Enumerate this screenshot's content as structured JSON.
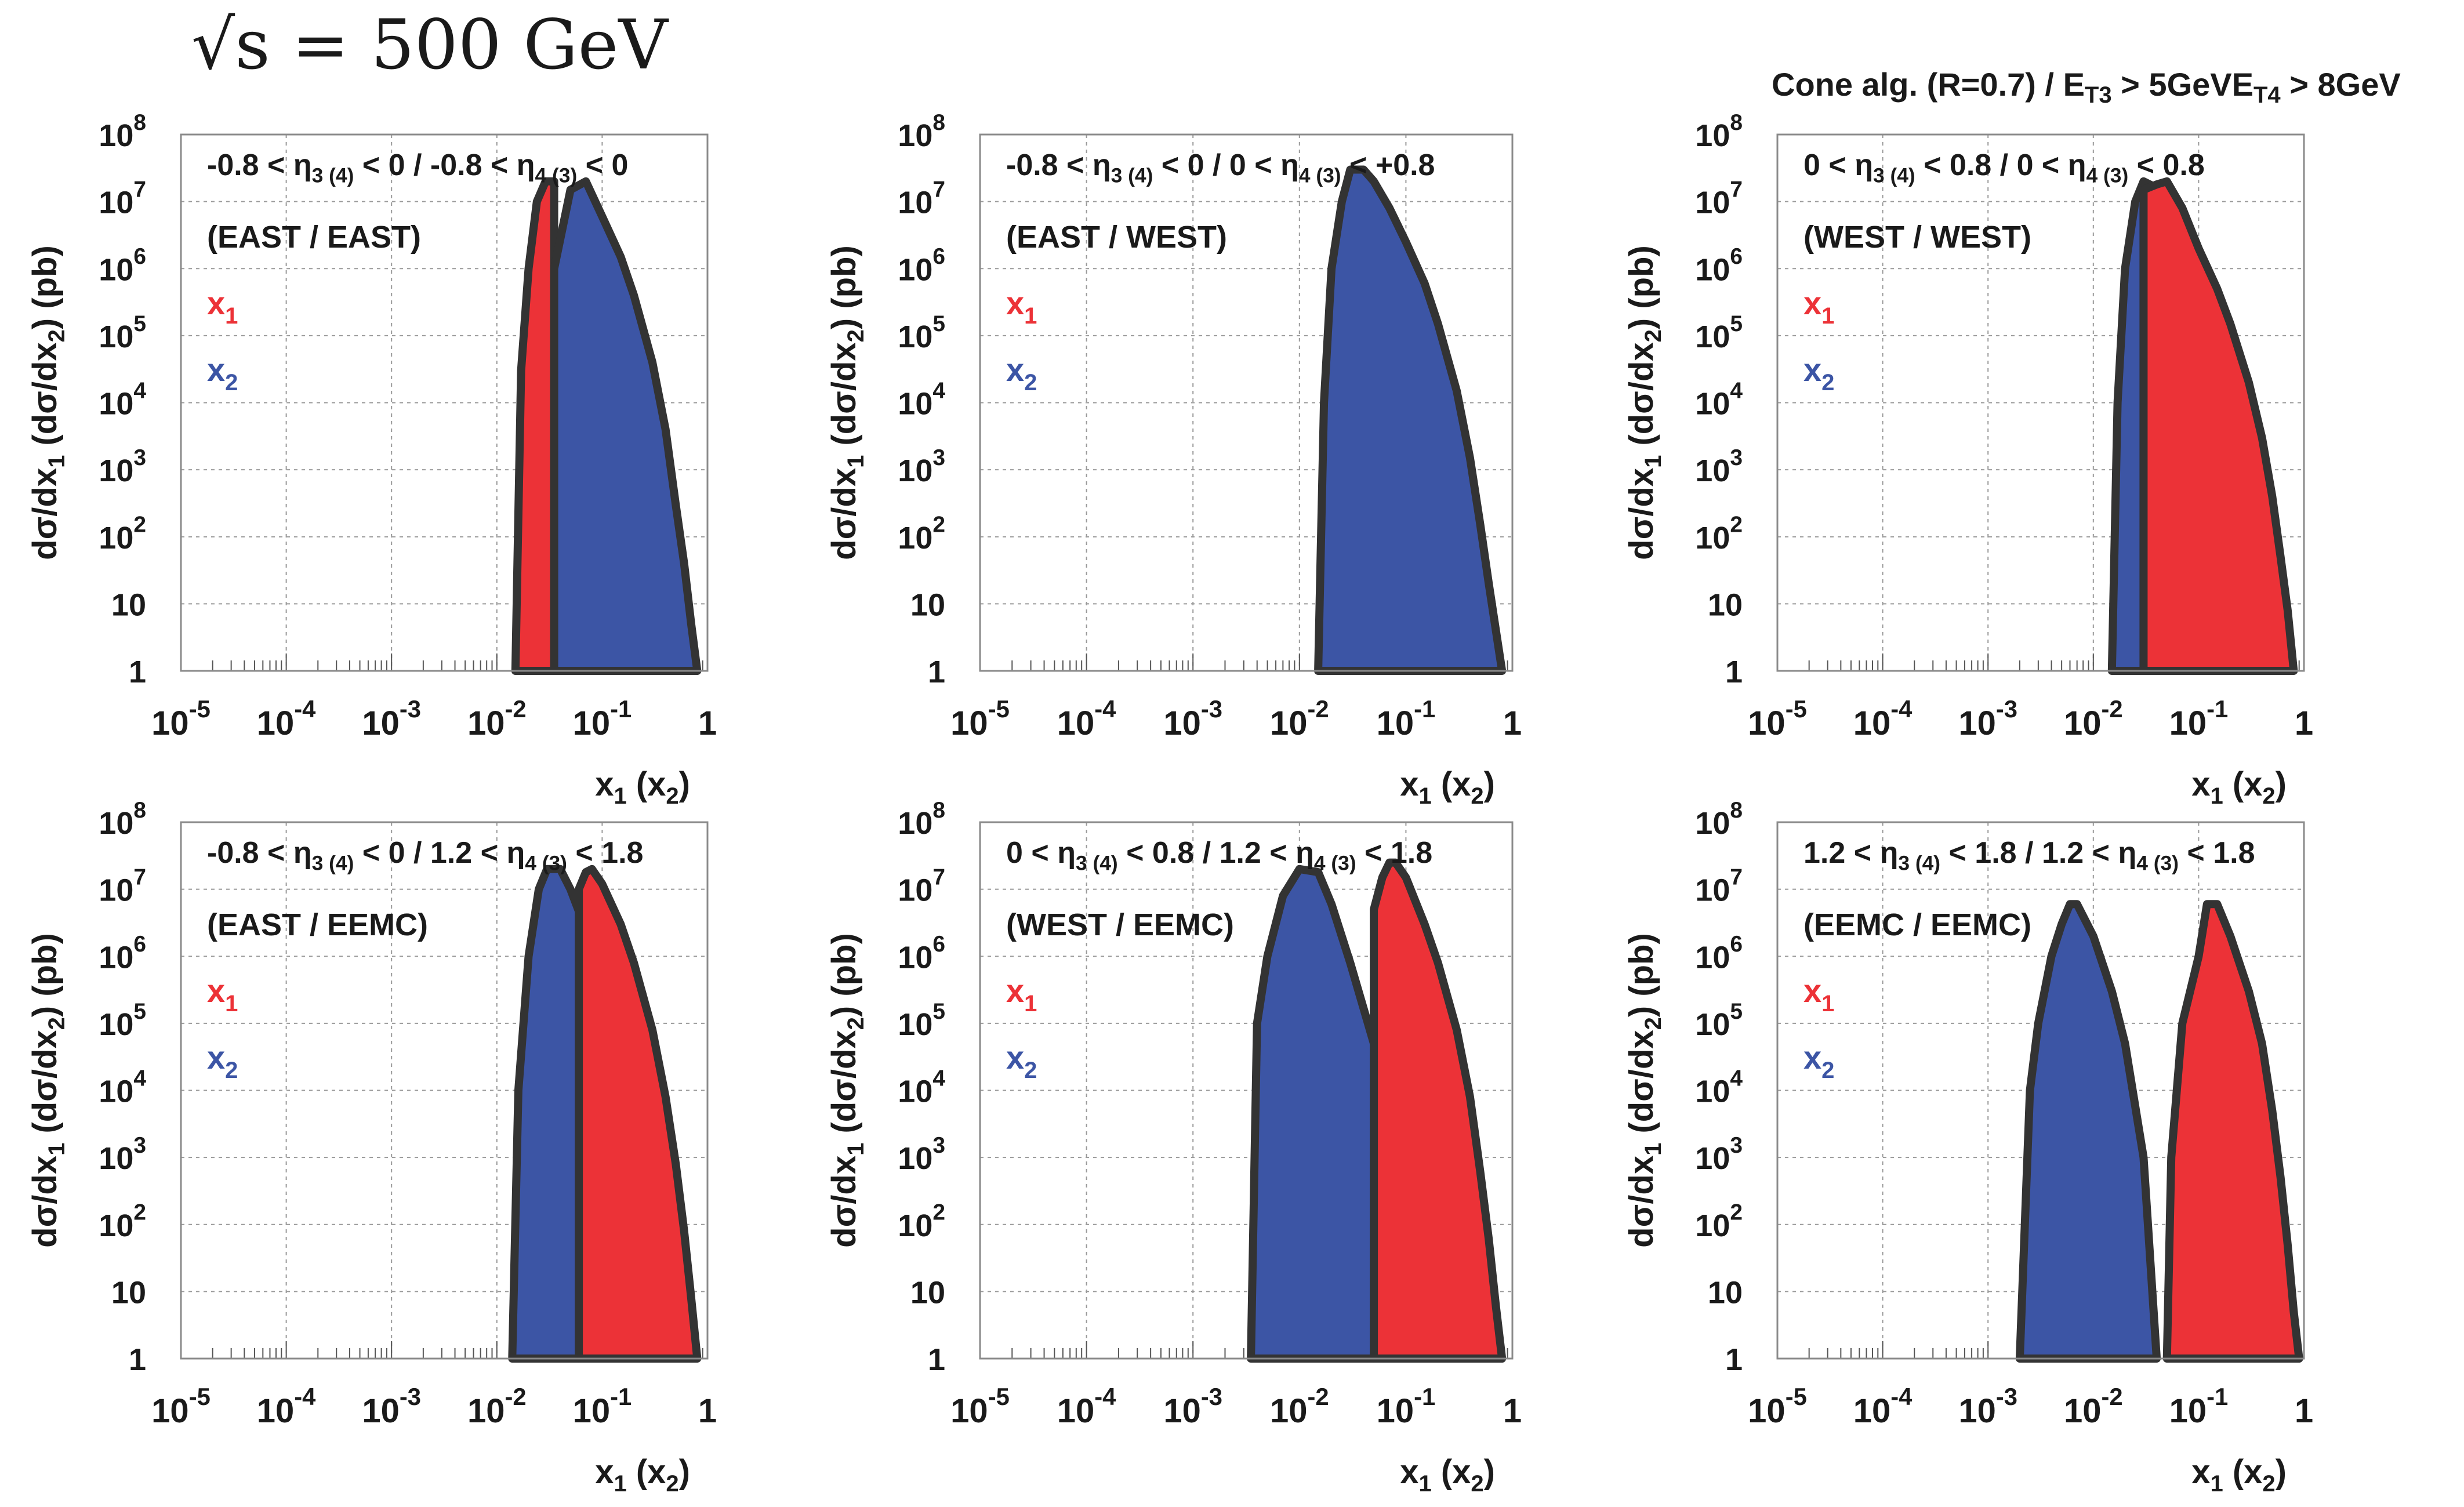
{
  "figure_title": "√s = 500 GeV",
  "header_note": {
    "prefix": "Cone alg. (R=0.7) / ",
    "et3_base": "E",
    "et3_sub": "T3",
    "et3_cut": " > 5GeV",
    "et4_base": "E",
    "et4_sub": "T4",
    "et4_cut": " > 8GeV"
  },
  "colors": {
    "x1": "#ec3237",
    "x2": "#3c55a5",
    "outline": "#333333",
    "grid": "#9a9a9a"
  },
  "chart_data": [
    {
      "type": "area",
      "region_label": "-0.8 < η3 (4) < 0 / -0.8 < η4 (3) < 0",
      "detector_label": "(EAST / EAST)",
      "legend": [
        "x1",
        "x2"
      ],
      "xlabel": "x1 (x2)",
      "ylabel": "dσ/dx1 (dσ/dx2) (pb)",
      "xscale": "log",
      "yscale": "log",
      "xlim": [
        1e-05,
        1
      ],
      "ylim": [
        1,
        100000000.0
      ],
      "grid": true,
      "x_ticks": [
        "10^-5",
        "10^-4",
        "10^-3",
        "10^-2",
        "10^-1",
        "1"
      ],
      "y_ticks": [
        "1",
        "10",
        "10^2",
        "10^3",
        "10^4",
        "10^5",
        "10^6",
        "10^7",
        "10^8"
      ],
      "series": [
        {
          "name": "x1",
          "x": [
            0.015,
            0.017,
            0.02,
            0.024,
            0.029,
            0.035
          ],
          "y": [
            1,
            30000.0,
            1000000.0,
            10000000.0,
            20000000.0,
            20000000.0
          ]
        },
        {
          "name": "x2",
          "x": [
            0.035,
            0.05,
            0.07,
            0.1,
            0.15,
            0.2,
            0.3,
            0.4,
            0.5,
            0.6,
            0.7,
            0.8
          ],
          "y": [
            1000000.0,
            15000000.0,
            20000000.0,
            6000000.0,
            1500000.0,
            400000.0,
            40000.0,
            4000.0,
            300.0,
            40,
            5,
            1
          ]
        }
      ]
    },
    {
      "type": "area",
      "region_label": "-0.8 < η3 (4) < 0 / 0 < η4 (3) < +0.8",
      "detector_label": "(EAST / WEST)",
      "legend": [
        "x1",
        "x2"
      ],
      "xlabel": "x1 (x2)",
      "ylabel": "dσ/dx1 (dσ/dx2) (pb)",
      "xscale": "log",
      "yscale": "log",
      "xlim": [
        1e-05,
        1
      ],
      "ylim": [
        1,
        100000000.0
      ],
      "grid": true,
      "x_ticks": [
        "10^-5",
        "10^-4",
        "10^-3",
        "10^-2",
        "10^-1",
        "1"
      ],
      "y_ticks": [
        "1",
        "10",
        "10^2",
        "10^3",
        "10^4",
        "10^5",
        "10^6",
        "10^7",
        "10^8"
      ],
      "series": [
        {
          "name": "x2",
          "x": [
            0.015,
            0.017,
            0.02,
            0.025,
            0.03,
            0.04,
            0.05,
            0.07,
            0.1,
            0.15,
            0.2,
            0.3,
            0.4,
            0.5,
            0.6,
            0.7,
            0.8
          ],
          "y": [
            1,
            10000.0,
            1000000.0,
            10000000.0,
            30000000.0,
            30000000.0,
            20000000.0,
            8000000.0,
            2500000.0,
            600000.0,
            150000.0,
            15000.0,
            1500.0,
            150.0,
            20,
            4,
            1
          ]
        }
      ]
    },
    {
      "type": "area",
      "region_label": "0 < η3 (4) < 0.8 / 0 < η4 (3) < 0.8",
      "detector_label": "(WEST / WEST)",
      "legend": [
        "x1",
        "x2"
      ],
      "xlabel": "x1 (x2)",
      "ylabel": "dσ/dx1 (dσ/dx2) (pb)",
      "xscale": "log",
      "yscale": "log",
      "xlim": [
        1e-05,
        1
      ],
      "ylim": [
        1,
        100000000.0
      ],
      "grid": true,
      "x_ticks": [
        "10^-5",
        "10^-4",
        "10^-3",
        "10^-2",
        "10^-1",
        "1"
      ],
      "y_ticks": [
        "1",
        "10",
        "10^2",
        "10^3",
        "10^4",
        "10^5",
        "10^6",
        "10^7",
        "10^8"
      ],
      "series": [
        {
          "name": "x2",
          "x": [
            0.015,
            0.017,
            0.02,
            0.025,
            0.03,
            0.04,
            0.05,
            0.07,
            0.1,
            0.15,
            0.2,
            0.3,
            0.4,
            0.5,
            0.6
          ],
          "y": [
            1,
            10000.0,
            1000000.0,
            10000000.0,
            20000000.0,
            16000000.0,
            8000000.0,
            2000000.0,
            500000.0,
            100000.0,
            25000.0,
            2500.0,
            300.0,
            30,
            1
          ]
        },
        {
          "name": "x1",
          "x": [
            0.03,
            0.04,
            0.05,
            0.07,
            0.1,
            0.15,
            0.2,
            0.3,
            0.4,
            0.5,
            0.6,
            0.7,
            0.8
          ],
          "y": [
            15000000.0,
            18000000.0,
            20000000.0,
            8000000.0,
            2000000.0,
            500000.0,
            150000.0,
            20000.0,
            3000.0,
            400.0,
            50,
            8,
            1
          ]
        }
      ]
    },
    {
      "type": "area",
      "region_label": "-0.8 < η3 (4) < 0 / 1.2 < η4 (3) < 1.8",
      "detector_label": "(EAST / EEMC)",
      "legend": [
        "x1",
        "x2"
      ],
      "xlabel": "x1 (x2)",
      "ylabel": "dσ/dx1 (dσ/dx2) (pb)",
      "xscale": "log",
      "yscale": "log",
      "xlim": [
        1e-05,
        1
      ],
      "ylim": [
        1,
        100000000.0
      ],
      "grid": true,
      "x_ticks": [
        "10^-5",
        "10^-4",
        "10^-3",
        "10^-2",
        "10^-1",
        "1"
      ],
      "y_ticks": [
        "1",
        "10",
        "10^2",
        "10^3",
        "10^4",
        "10^5",
        "10^6",
        "10^7",
        "10^8"
      ],
      "series": [
        {
          "name": "x2",
          "x": [
            0.014,
            0.016,
            0.02,
            0.025,
            0.03,
            0.04,
            0.05,
            0.07,
            0.1,
            0.15,
            0.2,
            0.3,
            0.4,
            0.5
          ],
          "y": [
            1,
            10000.0,
            1000000.0,
            10000000.0,
            20000000.0,
            20000000.0,
            10000000.0,
            2500000.0,
            600000.0,
            120000.0,
            25000.0,
            2000.0,
            100.0,
            1
          ]
        },
        {
          "name": "x1",
          "x": [
            0.06,
            0.07,
            0.08,
            0.1,
            0.15,
            0.2,
            0.3,
            0.4,
            0.5,
            0.6,
            0.7,
            0.8
          ],
          "y": [
            10000000.0,
            18000000.0,
            20000000.0,
            12000000.0,
            3000000.0,
            800000.0,
            80000.0,
            8000.0,
            800.0,
            80,
            8,
            1
          ]
        }
      ]
    },
    {
      "type": "area",
      "region_label": "0 < η3 (4) < 0.8 / 1.2 < η4 (3) < 1.8",
      "detector_label": "(WEST / EEMC)",
      "legend": [
        "x1",
        "x2"
      ],
      "xlabel": "x1 (x2)",
      "ylabel": "dσ/dx1 (dσ/dx2) (pb)",
      "xscale": "log",
      "yscale": "log",
      "xlim": [
        1e-05,
        1
      ],
      "ylim": [
        1,
        100000000.0
      ],
      "grid": true,
      "x_ticks": [
        "10^-5",
        "10^-4",
        "10^-3",
        "10^-2",
        "10^-1",
        "1"
      ],
      "y_ticks": [
        "1",
        "10",
        "10^2",
        "10^3",
        "10^4",
        "10^5",
        "10^6",
        "10^7",
        "10^8"
      ],
      "series": [
        {
          "name": "x2",
          "x": [
            0.0035,
            0.004,
            0.005,
            0.007,
            0.01,
            0.015,
            0.02,
            0.03,
            0.05,
            0.07,
            0.1,
            0.15
          ],
          "y": [
            1,
            100000.0,
            1000000.0,
            8000000.0,
            20000000.0,
            18000000.0,
            6000000.0,
            800000.0,
            50000.0,
            5000.0,
            100.0,
            1
          ]
        },
        {
          "name": "x1",
          "x": [
            0.05,
            0.06,
            0.07,
            0.08,
            0.1,
            0.15,
            0.2,
            0.3,
            0.4,
            0.5,
            0.6,
            0.7,
            0.8
          ],
          "y": [
            5000000.0,
            15000000.0,
            25000000.0,
            25000000.0,
            15000000.0,
            3000000.0,
            800000.0,
            80000.0,
            8000.0,
            600.0,
            60,
            6,
            1
          ]
        }
      ]
    },
    {
      "type": "area",
      "region_label": "1.2 < η3 (4) < 1.8 / 1.2 < η4 (3) < 1.8",
      "detector_label": "(EEMC / EEMC)",
      "legend": [
        "x1",
        "x2"
      ],
      "xlabel": "x1 (x2)",
      "ylabel": "dσ/dx1 (dσ/dx2) (pb)",
      "xscale": "log",
      "yscale": "log",
      "xlim": [
        1e-05,
        1
      ],
      "ylim": [
        1,
        100000000.0
      ],
      "grid": true,
      "x_ticks": [
        "10^-5",
        "10^-4",
        "10^-3",
        "10^-2",
        "10^-1",
        "1"
      ],
      "y_ticks": [
        "1",
        "10",
        "10^2",
        "10^3",
        "10^4",
        "10^5",
        "10^6",
        "10^7",
        "10^8"
      ],
      "series": [
        {
          "name": "x2",
          "x": [
            0.002,
            0.0025,
            0.003,
            0.004,
            0.005,
            0.006,
            0.007,
            0.01,
            0.015,
            0.02,
            0.03,
            0.04
          ],
          "y": [
            1,
            10000.0,
            100000.0,
            1000000.0,
            3000000.0,
            6000000.0,
            6000000.0,
            2000000.0,
            300000.0,
            50000.0,
            1000.0,
            1
          ]
        },
        {
          "name": "x1",
          "x": [
            0.05,
            0.055,
            0.07,
            0.1,
            0.12,
            0.15,
            0.2,
            0.3,
            0.4,
            0.5,
            0.6,
            0.7,
            0.8,
            0.9
          ],
          "y": [
            1,
            1000.0,
            100000.0,
            1000000.0,
            6000000.0,
            6000000.0,
            2000000.0,
            300000.0,
            50000.0,
            5000.0,
            500.0,
            50,
            5,
            1
          ]
        }
      ]
    }
  ]
}
